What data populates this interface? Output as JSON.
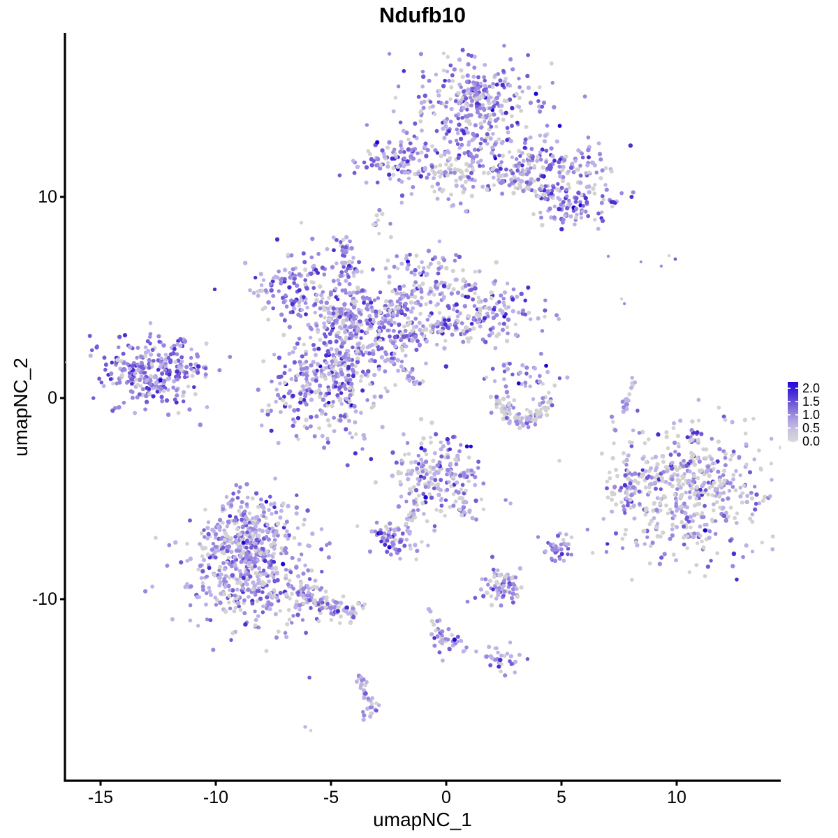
{
  "title": "Ndufb10",
  "chart_data": {
    "type": "scatter",
    "title": "Ndufb10",
    "xlabel": "umapNC_1",
    "ylabel": "umapNC_2",
    "xlim": [
      -16.5,
      14.5
    ],
    "ylim": [
      -19.0,
      18.2
    ],
    "grid": false,
    "x_ticks": [
      {
        "v": -15,
        "label": "-15"
      },
      {
        "v": -10,
        "label": "-10"
      },
      {
        "v": -5,
        "label": "-5"
      },
      {
        "v": 0,
        "label": "0"
      },
      {
        "v": 5,
        "label": "5"
      },
      {
        "v": 10,
        "label": "10"
      }
    ],
    "y_ticks": [
      {
        "v": 10,
        "label": "10"
      },
      {
        "v": 0,
        "label": "0"
      },
      {
        "v": -10,
        "label": "-10"
      }
    ],
    "legend": {
      "position": "right",
      "labels": [
        "2.0",
        "1.5",
        "1.0",
        "0.5",
        "0.0"
      ],
      "values": [
        2.0,
        1.5,
        1.0,
        0.5,
        0.0
      ],
      "range_max": 2.24,
      "stops_top_to_bottom": [
        "#2408dc",
        "#4a30d6",
        "#7a64d8",
        "#a89ae2",
        "#c9c2e0",
        "#d9d9d9"
      ]
    },
    "colorscale": {
      "low_value_color": "#d3d3d3",
      "high_value_color": "#1a08d6"
    },
    "palette": {
      "grey": "#d2d2d2",
      "light": "#bdb2e7",
      "mid": "#9b87df",
      "high": "#7659d6",
      "deep": "#4c2ed0",
      "navy": "#1a08d6"
    },
    "palette_order": [
      "grey",
      "light",
      "mid",
      "high",
      "deep",
      "navy"
    ],
    "clusters": [
      {
        "name": "top-main-blob",
        "kind": "gauss",
        "cx": 1.39,
        "cy": 13.96,
        "sx": 1.45,
        "sy": 1.56,
        "n": 300,
        "w": [
          0.22,
          0.28,
          0.27,
          0.16,
          0.06,
          0.01
        ]
      },
      {
        "name": "top-main-upper",
        "kind": "gauss",
        "cx": 1.55,
        "cy": 15.1,
        "sx": 0.9,
        "sy": 0.63,
        "n": 80,
        "w": [
          0.22,
          0.28,
          0.27,
          0.16,
          0.06,
          0.01
        ]
      },
      {
        "name": "top-main-lower-spread",
        "kind": "gauss",
        "cx": 0.64,
        "cy": 10.94,
        "sx": 1.2,
        "sy": 0.87,
        "n": 90,
        "w": [
          0.35,
          0.3,
          0.2,
          0.12,
          0.03,
          0
        ]
      },
      {
        "name": "top-right-arm",
        "kind": "gauss",
        "cx": 4.88,
        "cy": 11.74,
        "sx": 1.36,
        "sy": 0.49,
        "n": 110,
        "w": [
          0.2,
          0.26,
          0.28,
          0.18,
          0.07,
          0.01
        ]
      },
      {
        "name": "top-right-lower-blob",
        "kind": "gauss",
        "cx": 5.42,
        "cy": 9.83,
        "sx": 0.91,
        "sy": 0.69,
        "n": 120,
        "w": [
          0.18,
          0.24,
          0.26,
          0.2,
          0.1,
          0.02
        ]
      },
      {
        "name": "top-connector",
        "kind": "line",
        "x1": 2.39,
        "y1": 11.18,
        "x2": 4.73,
        "y2": 10.0,
        "j": 0.25,
        "n": 55,
        "w": [
          0.24,
          0.3,
          0.26,
          0.14,
          0.05,
          0.01
        ]
      },
      {
        "name": "top-left-satellite",
        "kind": "gauss",
        "cx": -2.33,
        "cy": 11.74,
        "sx": 0.79,
        "sy": 0.52,
        "n": 95,
        "w": [
          0.15,
          0.25,
          0.3,
          0.2,
          0.08,
          0.02
        ]
      },
      {
        "name": "top-left-trail",
        "kind": "line",
        "x1": -1.42,
        "y1": 11.35,
        "x2": 0.48,
        "y2": 11.22,
        "j": 0.18,
        "n": 20,
        "w": [
          0.3,
          0.3,
          0.25,
          0.12,
          0.03,
          0
        ]
      },
      {
        "name": "tiny-blob-below-satellite",
        "kind": "gauss",
        "cx": -2.82,
        "cy": 8.75,
        "sx": 0.24,
        "sy": 0.42,
        "n": 11,
        "w": [
          0.45,
          0.35,
          0.15,
          0.05,
          0,
          0
        ]
      },
      {
        "name": "central-upper-left-lobe",
        "kind": "gauss",
        "cx": -6.39,
        "cy": 5.49,
        "sx": 1.21,
        "sy": 0.9,
        "n": 150,
        "w": [
          0.18,
          0.26,
          0.28,
          0.19,
          0.08,
          0.01
        ]
      },
      {
        "name": "central-ul-arm",
        "kind": "line",
        "x1": -5.36,
        "y1": 4.58,
        "x2": -3.97,
        "y2": 3.75,
        "j": 0.25,
        "n": 55,
        "w": [
          0.24,
          0.3,
          0.26,
          0.14,
          0.05,
          0.01
        ]
      },
      {
        "name": "central-spike",
        "kind": "line",
        "x1": -4.39,
        "y1": 7.57,
        "x2": -3.97,
        "y2": 4.93,
        "j": 0.16,
        "n": 28,
        "w": [
          0.2,
          0.3,
          0.3,
          0.15,
          0.05,
          0
        ]
      },
      {
        "name": "central-spike-knob",
        "kind": "gauss",
        "cx": -4.55,
        "cy": 7.6,
        "sx": 0.27,
        "sy": 0.31,
        "n": 16,
        "w": [
          0.1,
          0.25,
          0.35,
          0.22,
          0.08,
          0
        ]
      },
      {
        "name": "central-knot",
        "kind": "gauss",
        "cx": -3.55,
        "cy": 3.54,
        "sx": 1.15,
        "sy": 1.04,
        "n": 260,
        "w": [
          0.14,
          0.24,
          0.3,
          0.22,
          0.09,
          0.01
        ]
      },
      {
        "name": "central-upper-right-lobe",
        "kind": "gauss",
        "cx": -0.82,
        "cy": 5.97,
        "sx": 0.85,
        "sy": 0.76,
        "n": 100,
        "w": [
          0.24,
          0.3,
          0.26,
          0.14,
          0.05,
          0.01
        ]
      },
      {
        "name": "central-ur-arm",
        "kind": "line",
        "x1": -1.64,
        "y1": 5.03,
        "x2": -2.7,
        "y2": 4.1,
        "j": 0.24,
        "n": 38,
        "w": [
          0.24,
          0.3,
          0.26,
          0.14,
          0.05,
          0.01
        ]
      },
      {
        "name": "central-right-lobe",
        "kind": "gauss",
        "cx": 1.61,
        "cy": 4.17,
        "sx": 1.15,
        "sy": 0.87,
        "n": 160,
        "w": [
          0.22,
          0.26,
          0.26,
          0.17,
          0.08,
          0.01
        ]
      },
      {
        "name": "central-right-connector",
        "kind": "line",
        "x1": -2.24,
        "y1": 2.95,
        "x2": 0.33,
        "y2": 3.75,
        "j": 0.3,
        "n": 70,
        "w": [
          0.3,
          0.28,
          0.24,
          0.13,
          0.05,
          0
        ]
      },
      {
        "name": "central-lower-left-lobe",
        "kind": "gauss",
        "cx": -5.18,
        "cy": 0.63,
        "sx": 1.27,
        "sy": 1.32,
        "n": 280,
        "w": [
          0.2,
          0.27,
          0.28,
          0.17,
          0.07,
          0.01
        ]
      },
      {
        "name": "central-diagonal-streak",
        "kind": "line",
        "x1": -2.52,
        "y1": 2.22,
        "x2": -1.06,
        "y2": 0.56,
        "j": 0.11,
        "n": 30,
        "w": [
          0.15,
          0.35,
          0.35,
          0.13,
          0.02,
          0
        ]
      },
      {
        "name": "central-bridge",
        "kind": "line",
        "x1": -4.36,
        "y1": 2.26,
        "x2": -5.12,
        "y2": 1.39,
        "j": 0.3,
        "n": 40,
        "w": [
          0.24,
          0.3,
          0.26,
          0.14,
          0.05,
          0.01
        ]
      },
      {
        "name": "far-left-cluster",
        "kind": "gauss",
        "cx": -12.94,
        "cy": 1.28,
        "sx": 1.09,
        "sy": 0.9,
        "n": 270,
        "w": [
          0.12,
          0.22,
          0.3,
          0.24,
          0.1,
          0.02
        ]
      },
      {
        "name": "far-left-arm-right",
        "kind": "line",
        "x1": -11.73,
        "y1": 1.46,
        "x2": -10.52,
        "y2": 1.49,
        "j": 0.12,
        "n": 22,
        "w": [
          0.12,
          0.22,
          0.3,
          0.24,
          0.1,
          0.02
        ]
      },
      {
        "name": "far-left-arm-up",
        "kind": "line",
        "x1": -11.79,
        "y1": 2.43,
        "x2": -11.27,
        "y2": 2.88,
        "j": 0.1,
        "n": 10,
        "w": [
          0.12,
          0.22,
          0.3,
          0.24,
          0.1,
          0.02
        ]
      },
      {
        "name": "crescent-bottom-arc",
        "kind": "path",
        "pts": [
          [
            2.21,
            0.07
          ],
          [
            2.58,
            -0.83
          ],
          [
            3.3,
            -1.11
          ],
          [
            4.03,
            -0.83
          ],
          [
            4.52,
            -0.07
          ]
        ],
        "j": 0.2,
        "n": 95,
        "w": [
          0.62,
          0.22,
          0.1,
          0.05,
          0.01,
          0
        ]
      },
      {
        "name": "crescent-top-scatter",
        "kind": "gauss",
        "cx": 3.55,
        "cy": 0.87,
        "sx": 0.82,
        "sy": 0.45,
        "n": 42,
        "w": [
          0.2,
          0.28,
          0.27,
          0.17,
          0.07,
          0.01
        ]
      },
      {
        "name": "right-banana-streak",
        "kind": "path",
        "pts": [
          [
            8.12,
            1.04
          ],
          [
            7.97,
            0.21
          ],
          [
            7.76,
            -0.56
          ]
        ],
        "j": 0.08,
        "n": 18,
        "w": [
          0.12,
          0.5,
          0.3,
          0.08,
          0,
          0
        ]
      },
      {
        "name": "right-big-cluster",
        "kind": "gauss",
        "cx": 10.58,
        "cy": -4.58,
        "sx": 1.67,
        "sy": 1.67,
        "n": 520,
        "w": [
          0.42,
          0.24,
          0.19,
          0.11,
          0.035,
          0.005
        ]
      },
      {
        "name": "right-big-satellite",
        "kind": "gauss",
        "cx": 7.97,
        "cy": -4.62,
        "sx": 0.42,
        "sy": 0.52,
        "n": 38,
        "w": [
          0.28,
          0.26,
          0.25,
          0.15,
          0.06,
          0
        ]
      },
      {
        "name": "bottom-left-top-knob",
        "kind": "gauss",
        "cx": -8.55,
        "cy": -5.97,
        "sx": 0.97,
        "sy": 0.76,
        "n": 130,
        "w": [
          0.22,
          0.28,
          0.28,
          0.16,
          0.05,
          0.01
        ]
      },
      {
        "name": "bottom-left-neck",
        "kind": "gauss",
        "cx": -8.76,
        "cy": -7.36,
        "sx": 0.79,
        "sy": 0.56,
        "n": 80,
        "w": [
          0.22,
          0.28,
          0.28,
          0.16,
          0.05,
          0.01
        ]
      },
      {
        "name": "bottom-left-body",
        "kind": "gauss",
        "cx": -8.52,
        "cy": -8.75,
        "sx": 1.45,
        "sy": 1.32,
        "n": 430,
        "w": [
          0.22,
          0.28,
          0.28,
          0.16,
          0.05,
          0.01
        ]
      },
      {
        "name": "bottom-left-tail",
        "kind": "line",
        "x1": -6.64,
        "y1": -9.65,
        "x2": -3.85,
        "y2": -10.83,
        "j": 0.32,
        "n": 100,
        "w": [
          0.3,
          0.28,
          0.25,
          0.13,
          0.04,
          0
        ]
      },
      {
        "name": "center-bottom-head",
        "kind": "gauss",
        "cx": -0.33,
        "cy": -3.89,
        "sx": 0.91,
        "sy": 0.9,
        "n": 190,
        "w": [
          0.36,
          0.24,
          0.22,
          0.13,
          0.04,
          0.01
        ]
      },
      {
        "name": "center-bottom-left-trail",
        "kind": "line",
        "x1": -1.18,
        "y1": -5.14,
        "x2": -1.79,
        "y2": -6.49,
        "j": 0.14,
        "n": 24,
        "w": [
          0.3,
          0.35,
          0.25,
          0.1,
          0,
          0
        ]
      },
      {
        "name": "center-bottom-right-arm",
        "kind": "line",
        "x1": 0.39,
        "y1": -5.0,
        "x2": 1.18,
        "y2": -5.97,
        "j": 0.16,
        "n": 20,
        "w": [
          0.3,
          0.35,
          0.25,
          0.1,
          0,
          0
        ]
      },
      {
        "name": "small-left-cluster",
        "kind": "gauss",
        "cx": -2.39,
        "cy": -7.01,
        "sx": 0.48,
        "sy": 0.42,
        "n": 60,
        "w": [
          0.15,
          0.28,
          0.3,
          0.2,
          0.06,
          0.01
        ]
      },
      {
        "name": "small-right-cluster",
        "kind": "gauss",
        "cx": 2.42,
        "cy": -9.41,
        "sx": 0.52,
        "sy": 0.47,
        "n": 75,
        "w": [
          0.24,
          0.27,
          0.26,
          0.16,
          0.06,
          0.01
        ]
      },
      {
        "name": "small-dense-purple-cluster",
        "kind": "gauss",
        "cx": 4.91,
        "cy": -7.57,
        "sx": 0.32,
        "sy": 0.33,
        "n": 38,
        "w": [
          0.08,
          0.25,
          0.35,
          0.25,
          0.07,
          0
        ]
      },
      {
        "name": "lower-trail",
        "kind": "line",
        "x1": -0.67,
        "y1": -10.56,
        "x2": -0.09,
        "y2": -12.08,
        "j": 0.12,
        "n": 16,
        "w": [
          0.2,
          0.35,
          0.3,
          0.15,
          0,
          0
        ]
      },
      {
        "name": "lower-knot",
        "kind": "gauss",
        "cx": 0.09,
        "cy": -12.19,
        "sx": 0.39,
        "sy": 0.3,
        "n": 26,
        "w": [
          0.18,
          0.3,
          0.3,
          0.17,
          0.05,
          0
        ]
      },
      {
        "name": "lower-knot-2",
        "kind": "gauss",
        "cx": 2.36,
        "cy": -12.99,
        "sx": 0.4,
        "sy": 0.34,
        "n": 30,
        "w": [
          0.2,
          0.3,
          0.3,
          0.15,
          0.05,
          0
        ]
      },
      {
        "name": "bottom-streak",
        "kind": "path",
        "pts": [
          [
            -3.73,
            -13.68
          ],
          [
            -3.58,
            -14.62
          ],
          [
            -3.24,
            -15.49
          ]
        ],
        "j": 0.1,
        "n": 24,
        "w": [
          0.18,
          0.42,
          0.3,
          0.1,
          0,
          0
        ]
      },
      {
        "name": "bottom-streak-knot",
        "kind": "gauss",
        "cx": -3.36,
        "cy": -15.42,
        "sx": 0.25,
        "sy": 0.22,
        "n": 12,
        "w": [
          0.18,
          0.42,
          0.3,
          0.1,
          0,
          0
        ]
      }
    ],
    "fixed_points": [
      {
        "x": 7.03,
        "y": 7.05,
        "c": "mid",
        "r": 2.2
      },
      {
        "x": 8.45,
        "y": 6.77,
        "c": "mid",
        "r": 2.0
      },
      {
        "x": 9.33,
        "y": 6.56,
        "c": "mid",
        "r": 2.2
      },
      {
        "x": 9.67,
        "y": 7.08,
        "c": "grey",
        "r": 2.2
      },
      {
        "x": 9.94,
        "y": 6.91,
        "c": "high",
        "r": 2.4
      },
      {
        "x": 7.61,
        "y": 4.93,
        "c": "grey",
        "r": 2.2
      },
      {
        "x": 7.73,
        "y": 4.69,
        "c": "mid",
        "r": 2.2
      },
      {
        "x": 8.3,
        "y": -0.63,
        "c": "high",
        "r": 2.8
      },
      {
        "x": 2.58,
        "y": -5.07,
        "c": "mid",
        "r": 2.8
      },
      {
        "x": 2.79,
        "y": -5.24,
        "c": "light",
        "r": 2.8
      },
      {
        "x": -1.06,
        "y": -7.15,
        "c": "grey",
        "r": 2.7
      },
      {
        "x": -0.79,
        "y": -7.33,
        "c": "light",
        "r": 2.7
      },
      {
        "x": -1.3,
        "y": -8.02,
        "c": "grey",
        "r": 2.7
      },
      {
        "x": -2.0,
        "y": -7.99,
        "c": "light",
        "r": 2.7
      },
      {
        "x": 0.36,
        "y": -12.01,
        "c": "navy",
        "r": 3.1
      },
      {
        "x": 0.88,
        "y": -12.4,
        "c": "mid",
        "r": 2.8
      },
      {
        "x": 1.3,
        "y": -12.6,
        "c": "light",
        "r": 2.8
      },
      {
        "x": -6.12,
        "y": -16.35,
        "c": "light",
        "r": 2.7
      },
      {
        "x": -5.88,
        "y": -16.53,
        "c": "grey",
        "r": 2.4
      }
    ]
  }
}
